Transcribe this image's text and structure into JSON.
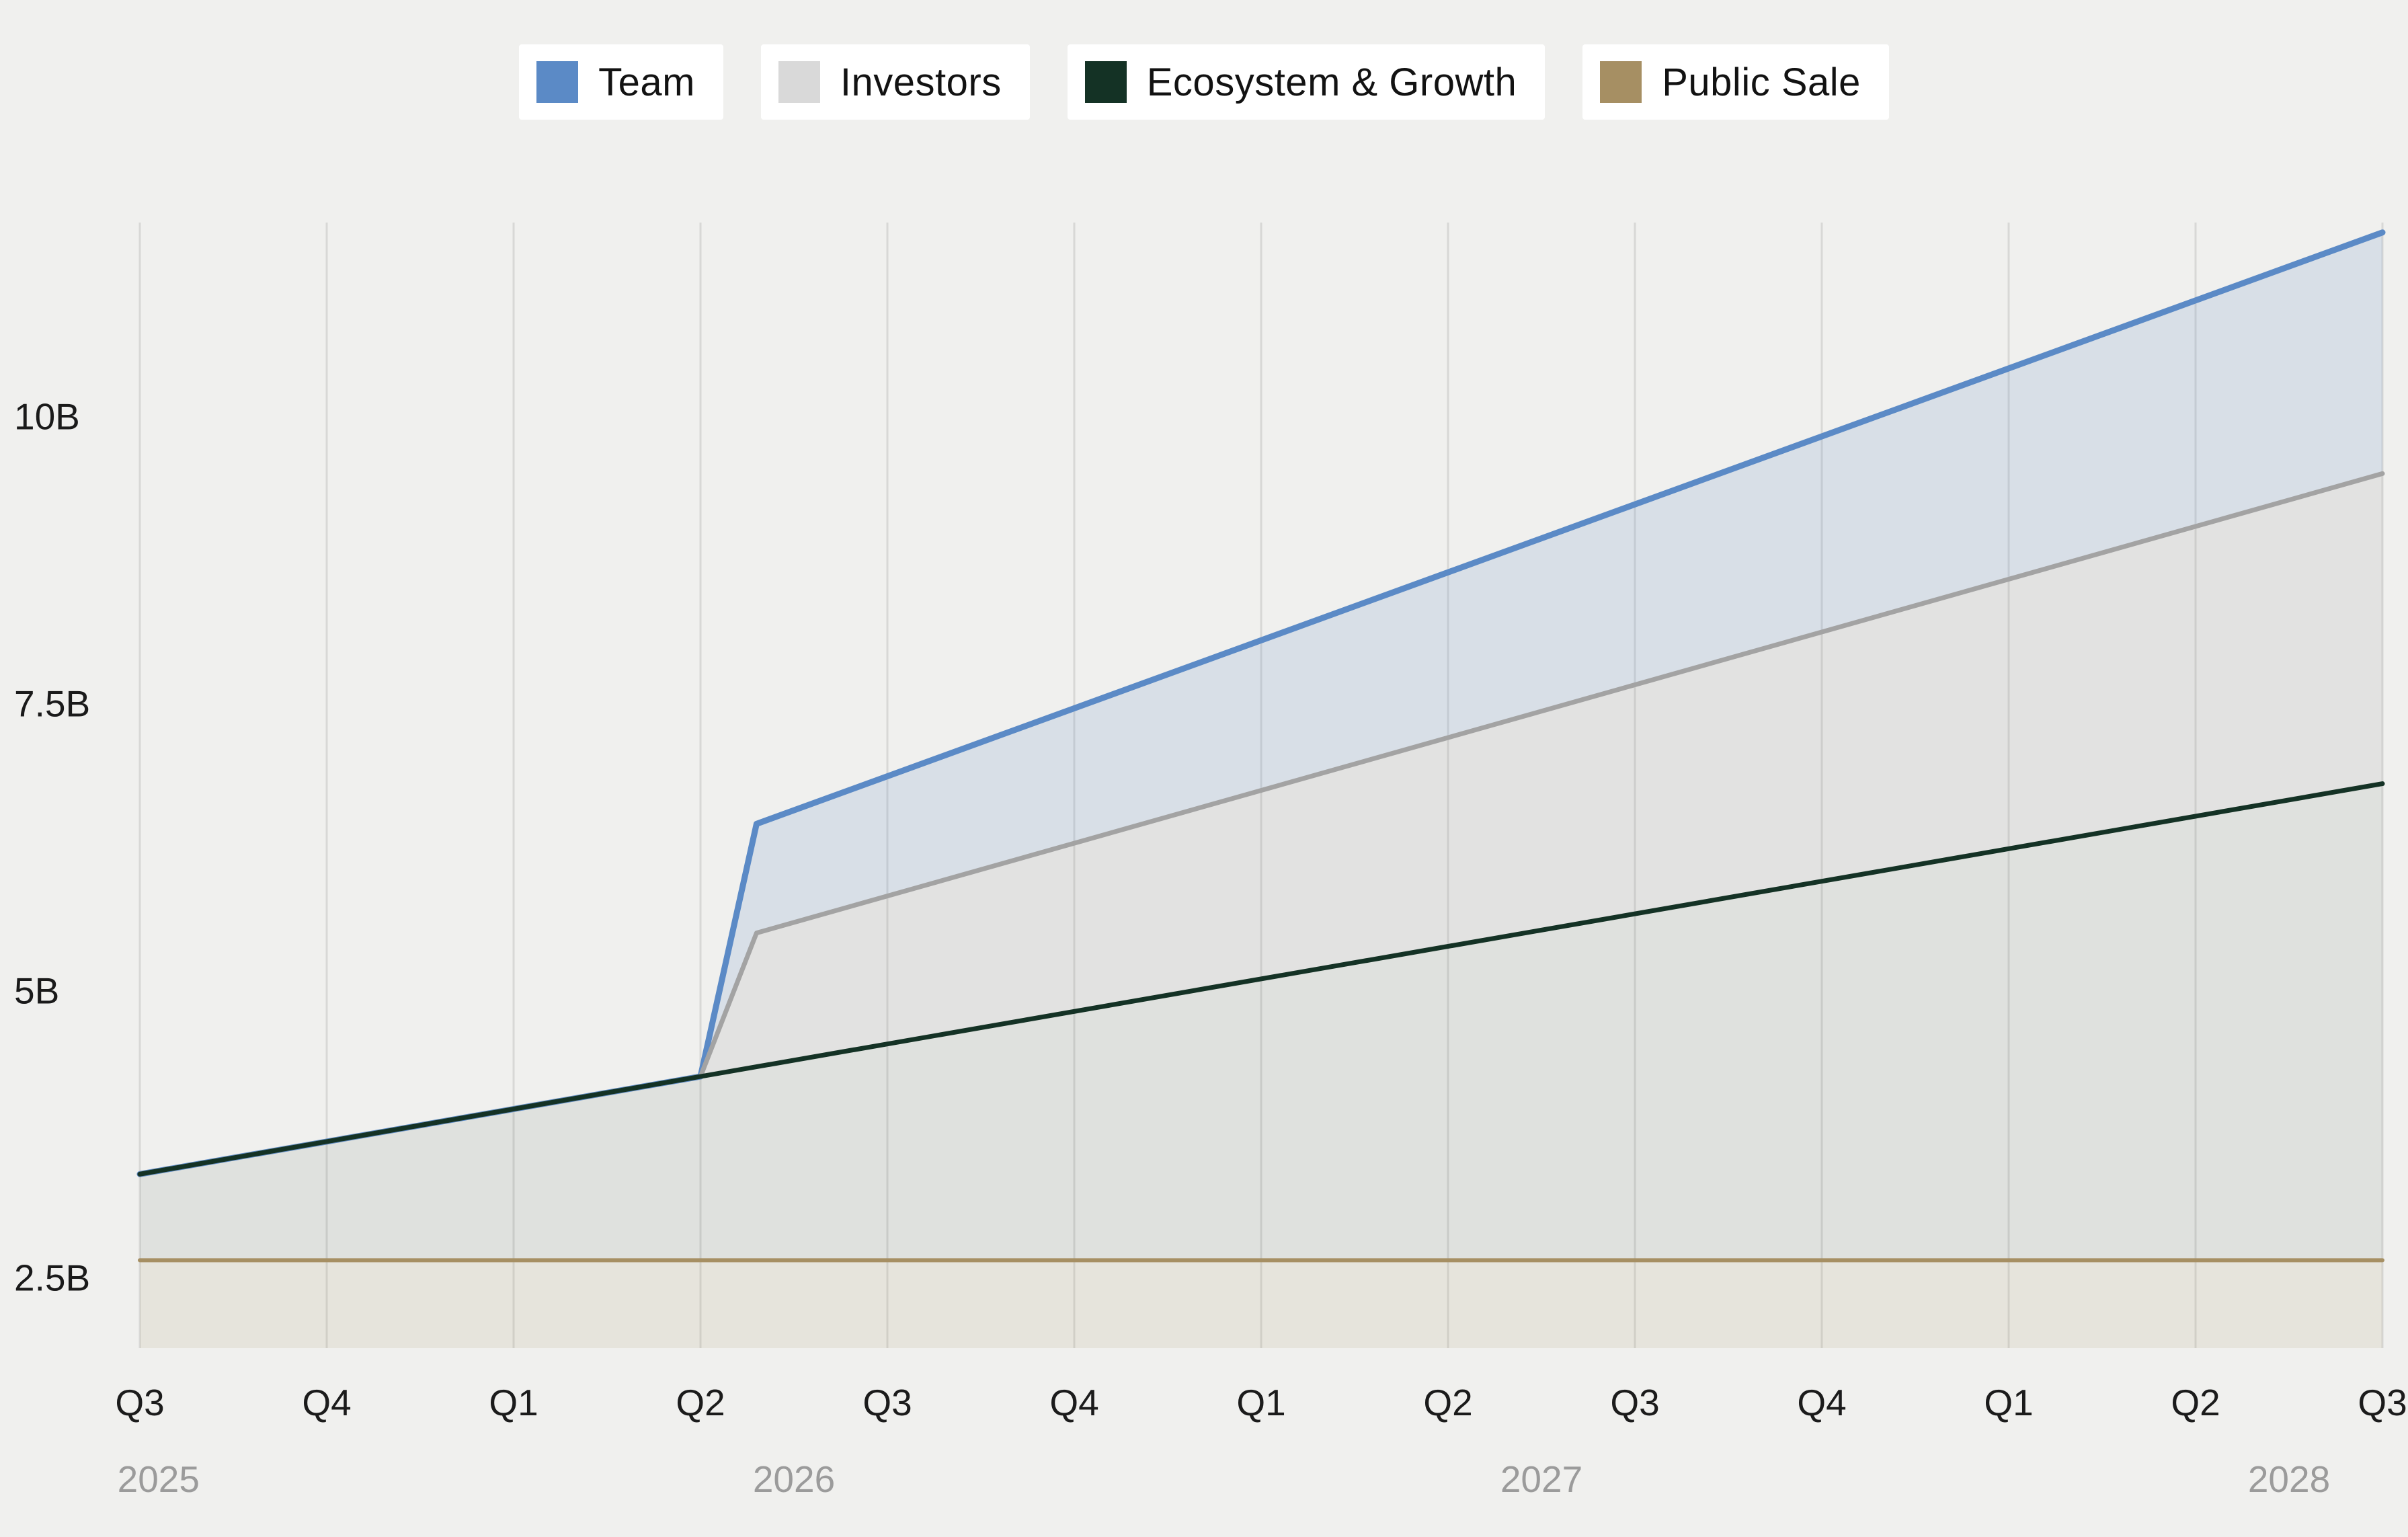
{
  "page": {
    "background_color": "#f0f0ee"
  },
  "legend": {
    "items": [
      {
        "label": "Team",
        "color": "#5b8ac6"
      },
      {
        "label": "Investors",
        "color": "#d9d9d9"
      },
      {
        "label": "Ecosystem & Growth",
        "color": "#143225"
      },
      {
        "label": "Public Sale",
        "color": "#a68f63"
      }
    ]
  },
  "chart_data": {
    "type": "area",
    "stacked": true,
    "title": "",
    "xlabel": "",
    "ylabel": "",
    "legend_position": "top-center",
    "grid": {
      "vertical": true,
      "horizontal": false,
      "color": "#d8d8d6"
    },
    "quarter_labels": [
      "Q3",
      "Q4",
      "Q1",
      "Q2",
      "Q3",
      "Q4",
      "Q1",
      "Q2",
      "Q3",
      "Q4",
      "Q1",
      "Q2",
      "Q3"
    ],
    "year_labels": [
      {
        "label": "2025",
        "index": 0.1
      },
      {
        "label": "2026",
        "index": 3.5
      },
      {
        "label": "2027",
        "index": 7.5
      },
      {
        "label": "2028",
        "index": 11.5
      }
    ],
    "y_ticks": [
      {
        "label": "2.5B",
        "value": 2.5
      },
      {
        "label": "5B",
        "value": 5
      },
      {
        "label": "7.5B",
        "value": 7.5
      },
      {
        "label": "10B",
        "value": 10
      }
    ],
    "y_axis": {
      "visible_min": 1.9,
      "visible_max": 11.7,
      "unit": "B"
    },
    "x_axis": {
      "quarters_from": "2025 Q3",
      "quarters_to": "2028 Q3",
      "num_ticks": 13
    },
    "series": [
      {
        "name": "Public Sale",
        "cumulative_top_points": [
          [
            0,
            2.65
          ],
          [
            12,
            2.65
          ]
        ],
        "line_color": "#a68f63",
        "fill_color": "rgba(166,143,99,0.13)",
        "line_width": 6
      },
      {
        "name": "Ecosystem & Growth",
        "cumulative_top_points": [
          [
            0,
            3.4
          ],
          [
            12,
            6.8
          ]
        ],
        "line_color": "#143225",
        "fill_color": "rgba(20,50,37,0.08)",
        "line_width": 7
      },
      {
        "name": "Investors",
        "cumulative_top_points": [
          [
            0,
            3.4
          ],
          [
            3,
            4.25
          ],
          [
            3.3,
            5.5
          ],
          [
            12,
            9.5
          ]
        ],
        "line_color": "#a3a3a3",
        "fill_color": "rgba(135,135,140,0.13)",
        "line_width": 7
      },
      {
        "name": "Team",
        "cumulative_top_points": [
          [
            0,
            3.4
          ],
          [
            3,
            4.25
          ],
          [
            3.3,
            6.45
          ],
          [
            12,
            11.6
          ]
        ],
        "line_color": "#5b8ac6",
        "fill_color": "rgba(91,138,198,0.16)",
        "line_width": 9
      }
    ]
  }
}
